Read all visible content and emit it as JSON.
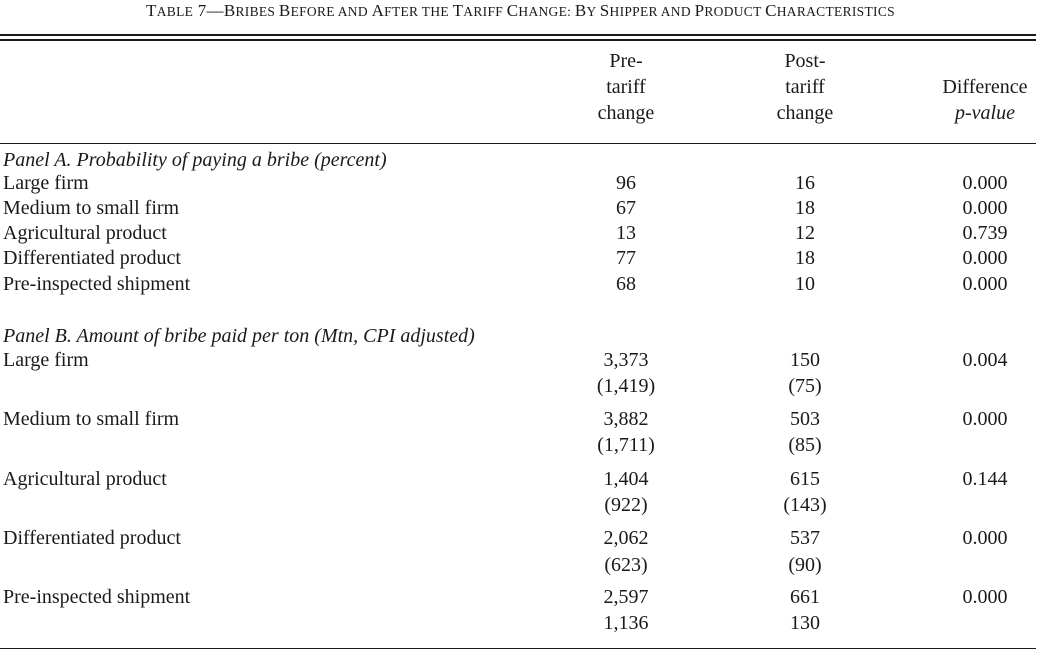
{
  "caption": {
    "prefix": "T",
    "prefix_rest": "ABLE",
    "number": " 7—",
    "parts": [
      {
        "big": "B",
        "sc": "RIBES "
      },
      {
        "big": "B",
        "sc": "EFORE AND "
      },
      {
        "big": "A",
        "sc": "FTER THE "
      },
      {
        "big": "T",
        "sc": "ARIFF "
      },
      {
        "big": "C",
        "sc": "HANGE: "
      },
      {
        "big": "B",
        "sc": "Y "
      },
      {
        "big": "S",
        "sc": "HIPPER AND "
      },
      {
        "big": "P",
        "sc": "RODUCT "
      },
      {
        "big": "C",
        "sc": "HARACTERISTICS"
      }
    ]
  },
  "columns": {
    "pre": [
      "Pre-",
      "tariff",
      "change"
    ],
    "post": [
      "Post-",
      "tariff",
      "change"
    ],
    "diff": [
      "Difference",
      "p-value"
    ]
  },
  "panel_a": {
    "title_italic": "Panel A. Probability of paying a bribe ",
    "title_paren": "(percent)",
    "rows": [
      {
        "label": "Large firm",
        "pre": "96",
        "post": "16",
        "p": "0.000"
      },
      {
        "label": "Medium to small firm",
        "pre": "67",
        "post": "18",
        "p": "0.000"
      },
      {
        "label": "Agricultural product",
        "pre": "13",
        "post": "12",
        "p": "0.739"
      },
      {
        "label": "Differentiated product",
        "pre": "77",
        "post": "18",
        "p": "0.000"
      },
      {
        "label": "Pre-inspected shipment",
        "pre": "68",
        "post": "10",
        "p": "0.000"
      }
    ]
  },
  "panel_b": {
    "title_italic": "Panel B. Amount of bribe paid per ton ",
    "title_paren": "(Mtn, CPI adjusted)",
    "rows": [
      {
        "label": "Large firm",
        "pre": "3,373",
        "pre_se": "(1,419)",
        "post": "150",
        "post_se": "(75)",
        "p": "0.004"
      },
      {
        "label": "Medium to small firm",
        "pre": "3,882",
        "pre_se": "(1,711)",
        "post": "503",
        "post_se": "(85)",
        "p": "0.000"
      },
      {
        "label": "Agricultural product",
        "pre": "1,404",
        "pre_se": "(922)",
        "post": "615",
        "post_se": "(143)",
        "p": "0.144"
      },
      {
        "label": "Differentiated product",
        "pre": "2,062",
        "pre_se": "(623)",
        "post": "537",
        "post_se": "(90)",
        "p": "0.000"
      },
      {
        "label": "Pre-inspected shipment",
        "pre": "2,597",
        "pre_se": "1,136",
        "post": "661",
        "post_se": "130",
        "p": "0.000"
      }
    ]
  }
}
